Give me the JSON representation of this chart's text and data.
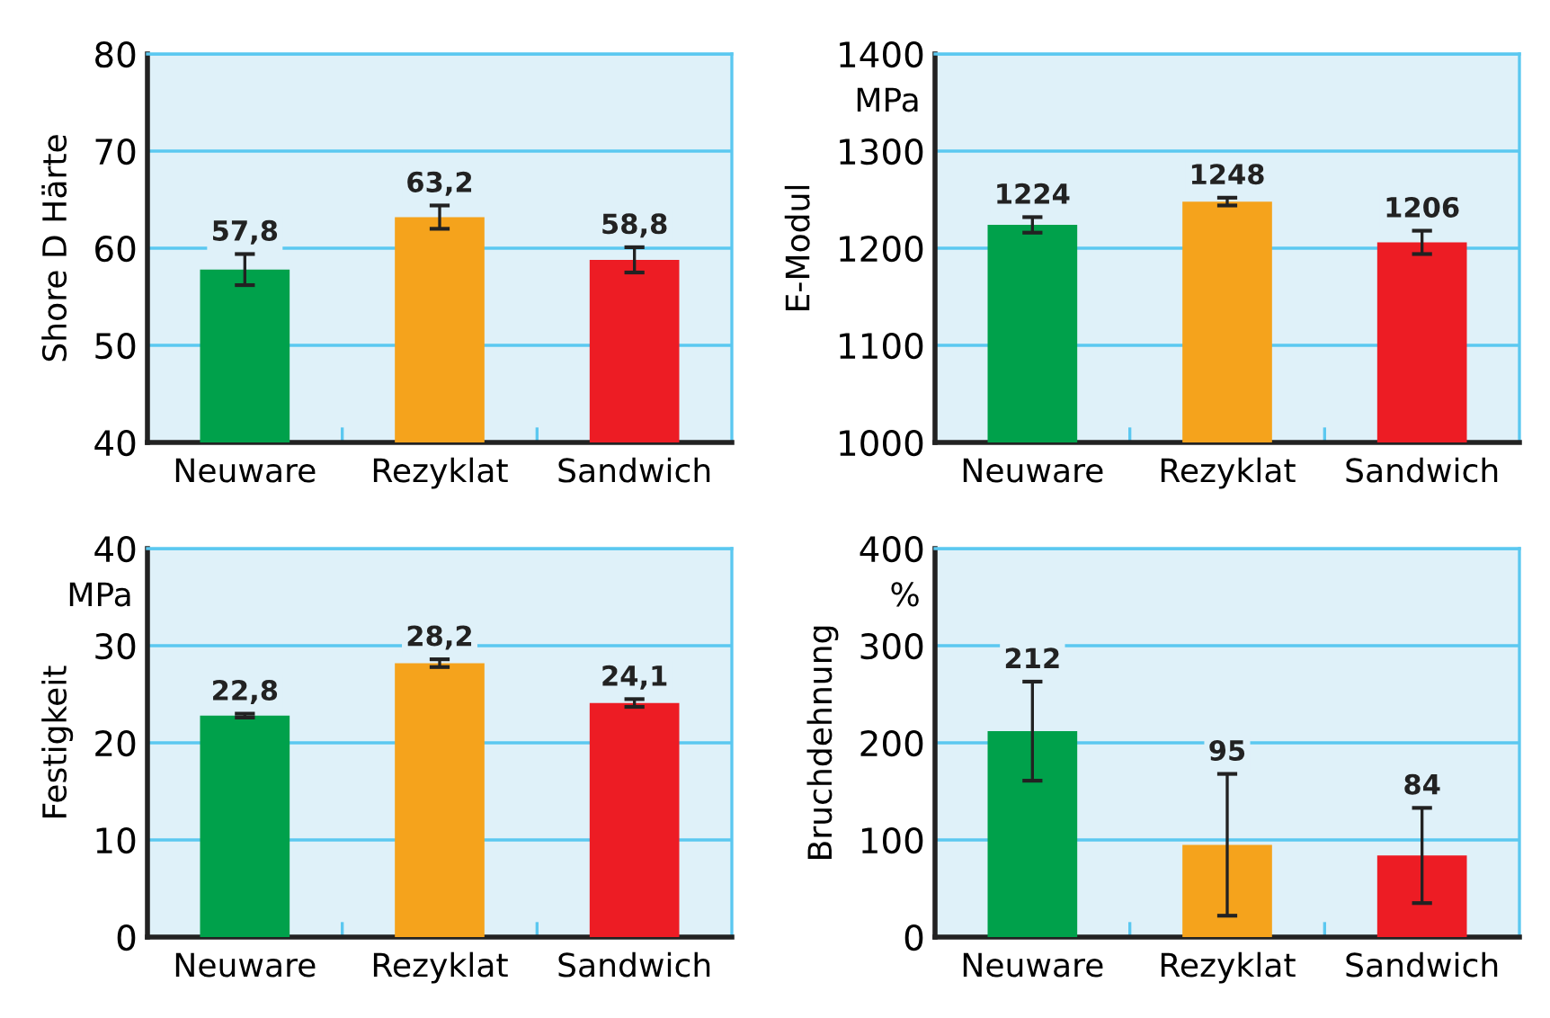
{
  "chart_data": [
    {
      "type": "bar",
      "ylabel": "Shore D Härte",
      "categories": [
        "Neuware",
        "Rezyklat",
        "Sandwich"
      ],
      "values": [
        57.8,
        63.2,
        58.8
      ],
      "errors": [
        1.6,
        1.2,
        1.3
      ],
      "value_labels": [
        "57,8",
        "63,2",
        "58,8"
      ],
      "colors": [
        "#00a14b",
        "#f5a31c",
        "#ed1c24"
      ],
      "ylim": [
        40,
        80
      ],
      "yticks": [
        40,
        50,
        60,
        70,
        80
      ],
      "grid": "y"
    },
    {
      "type": "bar",
      "ylabel": "E-Modul",
      "annotations": [
        "MPa"
      ],
      "categories": [
        "Neuware",
        "Rezyklat",
        "Sandwich"
      ],
      "values": [
        1224,
        1248,
        1206
      ],
      "errors": [
        8,
        4,
        12
      ],
      "data_labels": true,
      "colors": [
        "#00a14b",
        "#f5a31c",
        "#ed1c24"
      ],
      "ylim": [
        1000,
        1400
      ],
      "yticks": [
        1000,
        1100,
        1200,
        1300,
        1400
      ],
      "grid": "y"
    },
    {
      "type": "bar",
      "ylabel": "Festigkeit",
      "annotations": [
        "MPa"
      ],
      "categories": [
        "Neuware",
        "Rezyklat",
        "Sandwich"
      ],
      "values": [
        22.8,
        28.2,
        24.1
      ],
      "errors": [
        0.2,
        0.4,
        0.4
      ],
      "value_labels": [
        "22,8",
        "28,2",
        "24,1"
      ],
      "colors": [
        "#00a14b",
        "#f5a31c",
        "#ed1c24"
      ],
      "ylim": [
        0,
        40
      ],
      "yticks": [
        0,
        10,
        20,
        30,
        40
      ],
      "grid": "y"
    },
    {
      "type": "bar",
      "ylabel": "Bruchdehnung",
      "annotations": [
        "%"
      ],
      "categories": [
        "Neuware",
        "Rezyklat",
        "Sandwich"
      ],
      "values": [
        212,
        95,
        84
      ],
      "errors": [
        51,
        73,
        49
      ],
      "data_labels": true,
      "colors": [
        "#00a14b",
        "#f5a31c",
        "#ed1c24"
      ],
      "ylim": [
        0,
        400
      ],
      "yticks": [
        0,
        100,
        200,
        300,
        400
      ],
      "grid": "y"
    }
  ]
}
